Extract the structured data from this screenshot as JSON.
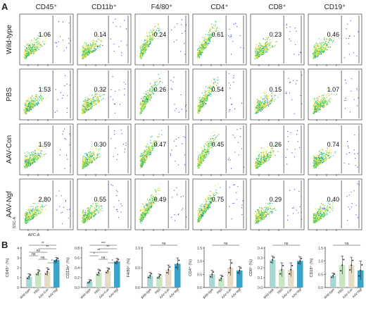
{
  "panel_labels": {
    "a": "A",
    "b": "B"
  },
  "markers": [
    "CD45⁺",
    "CD11b⁺",
    "F4/80⁺",
    "CD4⁺",
    "CD8⁺",
    "CD19⁺"
  ],
  "groups": [
    "Wild-type",
    "PBS",
    "AAV-Con",
    "AAV-Ngf"
  ],
  "axis_labels": {
    "y": "SSC-A",
    "x": "APC-A"
  },
  "flow_percentages": [
    [
      "1.06",
      "0.14",
      "0.24",
      "0.61",
      "0.23",
      "0.46"
    ],
    [
      "1.53",
      "0.32",
      "0.26",
      "0.54",
      "0.15",
      "1.07"
    ],
    [
      "1.59",
      "0.30",
      "0.47",
      "0.45",
      "0.26",
      "0.74"
    ],
    [
      "2.80",
      "0.55",
      "0.49",
      "0.75",
      "0.29",
      "0.40"
    ]
  ],
  "colors": {
    "points_low": "#2f3fd8",
    "points_mid": "#27c46a",
    "points_high": "#e8e23a",
    "bar_wildtype": "#a8d8d4",
    "bar_pbs": "#c9e6c2",
    "bar_aavcon": "#e6dcc6",
    "bar_aavngf": "#3aa3c7"
  },
  "chart_data": [
    {
      "type": "bar",
      "ylabel": "CD45⁺ (%)",
      "ylim": [
        0,
        4
      ],
      "yticks": [
        "0",
        "1",
        "2",
        "3",
        "4"
      ],
      "categories": [
        "Wild-type",
        "PBS",
        "AAV-Con",
        "AAV-Ngf"
      ],
      "values": [
        1.1,
        1.5,
        1.6,
        2.8
      ],
      "errors": [
        0.3,
        0.3,
        0.4,
        0.25
      ],
      "sig": [
        {
          "a": 0,
          "b": 3,
          "label": "**"
        },
        {
          "a": 1,
          "b": 3,
          "label": "**"
        },
        {
          "a": 0,
          "b": 2,
          "label": "ns"
        },
        {
          "a": 0,
          "b": 1,
          "label": "ns"
        },
        {
          "a": 1,
          "b": 2,
          "label": "ns"
        },
        {
          "a": 2,
          "b": 3,
          "label": "*"
        }
      ]
    },
    {
      "type": "bar",
      "ylabel": "CD11b⁺ (%)",
      "ylim": [
        0,
        0.8
      ],
      "yticks": [
        "0.0",
        "0.2",
        "0.4",
        "0.6",
        "0.8"
      ],
      "categories": [
        "Wild-type",
        "PBS",
        "AAV-Con",
        "AAV-Ngf"
      ],
      "values": [
        0.12,
        0.3,
        0.34,
        0.53
      ],
      "errors": [
        0.04,
        0.07,
        0.06,
        0.06
      ],
      "sig": [
        {
          "a": 0,
          "b": 3,
          "label": "***"
        },
        {
          "a": 1,
          "b": 3,
          "label": "**"
        },
        {
          "a": 0,
          "b": 2,
          "label": "**"
        },
        {
          "a": 0,
          "b": 1,
          "label": "*"
        },
        {
          "a": 1,
          "b": 2,
          "label": "ns"
        },
        {
          "a": 2,
          "b": 3,
          "label": "*"
        }
      ]
    },
    {
      "type": "bar",
      "ylabel": "F4/80⁺ (%)",
      "ylim": [
        0,
        1.0
      ],
      "yticks": [
        "0.0",
        "0.5",
        "1.0"
      ],
      "categories": [
        "Wild-type",
        "PBS",
        "AAV-Con",
        "AAV-Ngf"
      ],
      "values": [
        0.3,
        0.28,
        0.45,
        0.6
      ],
      "errors": [
        0.08,
        0.06,
        0.12,
        0.15
      ],
      "sig": [
        {
          "a": 0,
          "b": 3,
          "label": "ns"
        }
      ]
    },
    {
      "type": "bar",
      "ylabel": "CD4⁺ (%)",
      "ylim": [
        0,
        1.5
      ],
      "yticks": [
        "0.0",
        "0.5",
        "1.0",
        "1.5"
      ],
      "categories": [
        "Wild-type",
        "PBS",
        "AAV-Con",
        "AAV-Ngf"
      ],
      "values": [
        0.5,
        0.35,
        0.75,
        0.65
      ],
      "errors": [
        0.15,
        0.12,
        0.3,
        0.15
      ],
      "sig": [
        {
          "a": 0,
          "b": 3,
          "label": "ns"
        }
      ]
    },
    {
      "type": "bar",
      "ylabel": "CD8⁺ (%)",
      "ylim": [
        0,
        0.4
      ],
      "yticks": [
        "0.0",
        "0.1",
        "0.2",
        "0.3",
        "0.4"
      ],
      "categories": [
        "Wild-type",
        "PBS",
        "AAV-Con",
        "AAV-Ngf"
      ],
      "values": [
        0.28,
        0.18,
        0.18,
        0.27
      ],
      "errors": [
        0.04,
        0.07,
        0.07,
        0.04
      ],
      "sig": [
        {
          "a": 0,
          "b": 3,
          "label": "ns"
        }
      ]
    },
    {
      "type": "bar",
      "ylabel": "CD19⁺ (%)",
      "ylim": [
        0,
        1.5
      ],
      "yticks": [
        "0.0",
        "0.5",
        "1.0",
        "1.5"
      ],
      "categories": [
        "Wild-type",
        "PBS",
        "AAV-Con",
        "AAV-Ngf"
      ],
      "values": [
        0.45,
        0.85,
        0.85,
        0.65
      ],
      "errors": [
        0.1,
        0.35,
        0.3,
        0.35
      ],
      "sig": [
        {
          "a": 0,
          "b": 3,
          "label": "ns"
        }
      ]
    }
  ]
}
